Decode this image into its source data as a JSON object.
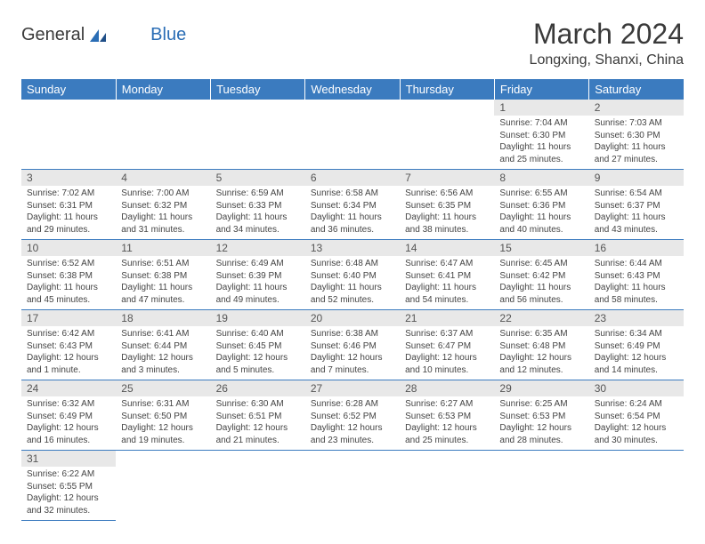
{
  "logo": {
    "text1": "General",
    "text2": "Blue"
  },
  "title": "March 2024",
  "location": "Longxing, Shanxi, China",
  "colors": {
    "header_bg": "#3b7bbf",
    "header_fg": "#ffffff",
    "daynum_bg": "#e8e8e8",
    "accent": "#2a6db5"
  },
  "dayHeaders": [
    "Sunday",
    "Monday",
    "Tuesday",
    "Wednesday",
    "Thursday",
    "Friday",
    "Saturday"
  ],
  "weeks": [
    [
      null,
      null,
      null,
      null,
      null,
      {
        "n": "1",
        "sr": "Sunrise: 7:04 AM",
        "ss": "Sunset: 6:30 PM",
        "dl": "Daylight: 11 hours and 25 minutes."
      },
      {
        "n": "2",
        "sr": "Sunrise: 7:03 AM",
        "ss": "Sunset: 6:30 PM",
        "dl": "Daylight: 11 hours and 27 minutes."
      }
    ],
    [
      {
        "n": "3",
        "sr": "Sunrise: 7:02 AM",
        "ss": "Sunset: 6:31 PM",
        "dl": "Daylight: 11 hours and 29 minutes."
      },
      {
        "n": "4",
        "sr": "Sunrise: 7:00 AM",
        "ss": "Sunset: 6:32 PM",
        "dl": "Daylight: 11 hours and 31 minutes."
      },
      {
        "n": "5",
        "sr": "Sunrise: 6:59 AM",
        "ss": "Sunset: 6:33 PM",
        "dl": "Daylight: 11 hours and 34 minutes."
      },
      {
        "n": "6",
        "sr": "Sunrise: 6:58 AM",
        "ss": "Sunset: 6:34 PM",
        "dl": "Daylight: 11 hours and 36 minutes."
      },
      {
        "n": "7",
        "sr": "Sunrise: 6:56 AM",
        "ss": "Sunset: 6:35 PM",
        "dl": "Daylight: 11 hours and 38 minutes."
      },
      {
        "n": "8",
        "sr": "Sunrise: 6:55 AM",
        "ss": "Sunset: 6:36 PM",
        "dl": "Daylight: 11 hours and 40 minutes."
      },
      {
        "n": "9",
        "sr": "Sunrise: 6:54 AM",
        "ss": "Sunset: 6:37 PM",
        "dl": "Daylight: 11 hours and 43 minutes."
      }
    ],
    [
      {
        "n": "10",
        "sr": "Sunrise: 6:52 AM",
        "ss": "Sunset: 6:38 PM",
        "dl": "Daylight: 11 hours and 45 minutes."
      },
      {
        "n": "11",
        "sr": "Sunrise: 6:51 AM",
        "ss": "Sunset: 6:38 PM",
        "dl": "Daylight: 11 hours and 47 minutes."
      },
      {
        "n": "12",
        "sr": "Sunrise: 6:49 AM",
        "ss": "Sunset: 6:39 PM",
        "dl": "Daylight: 11 hours and 49 minutes."
      },
      {
        "n": "13",
        "sr": "Sunrise: 6:48 AM",
        "ss": "Sunset: 6:40 PM",
        "dl": "Daylight: 11 hours and 52 minutes."
      },
      {
        "n": "14",
        "sr": "Sunrise: 6:47 AM",
        "ss": "Sunset: 6:41 PM",
        "dl": "Daylight: 11 hours and 54 minutes."
      },
      {
        "n": "15",
        "sr": "Sunrise: 6:45 AM",
        "ss": "Sunset: 6:42 PM",
        "dl": "Daylight: 11 hours and 56 minutes."
      },
      {
        "n": "16",
        "sr": "Sunrise: 6:44 AM",
        "ss": "Sunset: 6:43 PM",
        "dl": "Daylight: 11 hours and 58 minutes."
      }
    ],
    [
      {
        "n": "17",
        "sr": "Sunrise: 6:42 AM",
        "ss": "Sunset: 6:43 PM",
        "dl": "Daylight: 12 hours and 1 minute."
      },
      {
        "n": "18",
        "sr": "Sunrise: 6:41 AM",
        "ss": "Sunset: 6:44 PM",
        "dl": "Daylight: 12 hours and 3 minutes."
      },
      {
        "n": "19",
        "sr": "Sunrise: 6:40 AM",
        "ss": "Sunset: 6:45 PM",
        "dl": "Daylight: 12 hours and 5 minutes."
      },
      {
        "n": "20",
        "sr": "Sunrise: 6:38 AM",
        "ss": "Sunset: 6:46 PM",
        "dl": "Daylight: 12 hours and 7 minutes."
      },
      {
        "n": "21",
        "sr": "Sunrise: 6:37 AM",
        "ss": "Sunset: 6:47 PM",
        "dl": "Daylight: 12 hours and 10 minutes."
      },
      {
        "n": "22",
        "sr": "Sunrise: 6:35 AM",
        "ss": "Sunset: 6:48 PM",
        "dl": "Daylight: 12 hours and 12 minutes."
      },
      {
        "n": "23",
        "sr": "Sunrise: 6:34 AM",
        "ss": "Sunset: 6:49 PM",
        "dl": "Daylight: 12 hours and 14 minutes."
      }
    ],
    [
      {
        "n": "24",
        "sr": "Sunrise: 6:32 AM",
        "ss": "Sunset: 6:49 PM",
        "dl": "Daylight: 12 hours and 16 minutes."
      },
      {
        "n": "25",
        "sr": "Sunrise: 6:31 AM",
        "ss": "Sunset: 6:50 PM",
        "dl": "Daylight: 12 hours and 19 minutes."
      },
      {
        "n": "26",
        "sr": "Sunrise: 6:30 AM",
        "ss": "Sunset: 6:51 PM",
        "dl": "Daylight: 12 hours and 21 minutes."
      },
      {
        "n": "27",
        "sr": "Sunrise: 6:28 AM",
        "ss": "Sunset: 6:52 PM",
        "dl": "Daylight: 12 hours and 23 minutes."
      },
      {
        "n": "28",
        "sr": "Sunrise: 6:27 AM",
        "ss": "Sunset: 6:53 PM",
        "dl": "Daylight: 12 hours and 25 minutes."
      },
      {
        "n": "29",
        "sr": "Sunrise: 6:25 AM",
        "ss": "Sunset: 6:53 PM",
        "dl": "Daylight: 12 hours and 28 minutes."
      },
      {
        "n": "30",
        "sr": "Sunrise: 6:24 AM",
        "ss": "Sunset: 6:54 PM",
        "dl": "Daylight: 12 hours and 30 minutes."
      }
    ],
    [
      {
        "n": "31",
        "sr": "Sunrise: 6:22 AM",
        "ss": "Sunset: 6:55 PM",
        "dl": "Daylight: 12 hours and 32 minutes."
      },
      null,
      null,
      null,
      null,
      null,
      null
    ]
  ]
}
